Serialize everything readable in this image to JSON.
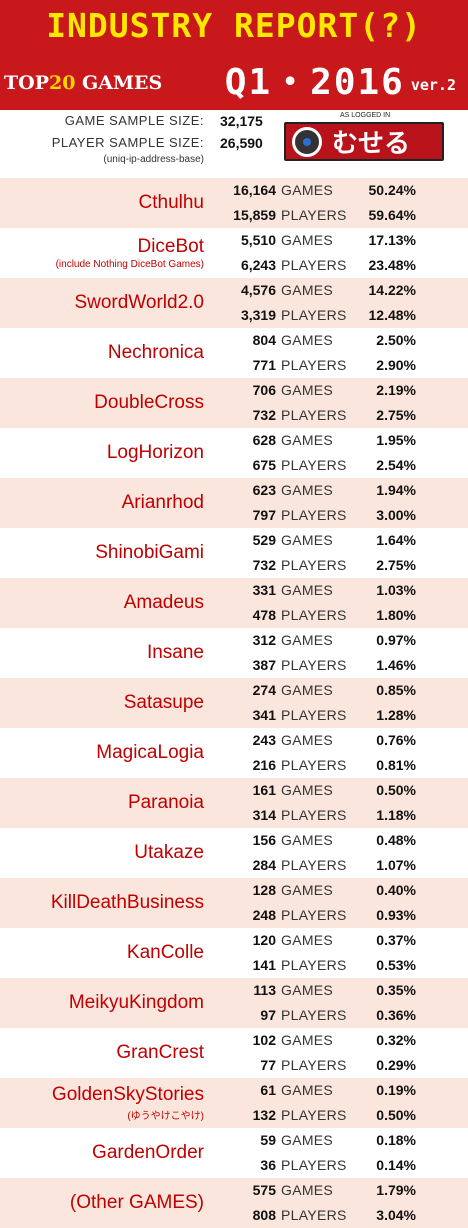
{
  "header": {
    "title": "INDUSTRY REPORT(?)",
    "badge_top": "TOP",
    "badge_num": "20",
    "badge_games": " GAMES",
    "quarter": "Q1・2016",
    "version": "ver.2"
  },
  "meta": {
    "game_sample_label": "GAME SAMPLE SIZE:",
    "game_sample_value": "32,175",
    "player_sample_label": "PLAYER SAMPLE SIZE:",
    "player_sample_value": "26,590",
    "note": "(uniq-ip-address-base)",
    "logged_caption": "AS LOGGED IN",
    "logo_text": "むせる"
  },
  "units": {
    "games": "GAMES",
    "players": "PLAYERS"
  },
  "games": [
    {
      "name": "Cthulhu",
      "sub": "",
      "games": "16,164",
      "games_pct": "50.24%",
      "players": "15,859",
      "players_pct": "59.64%"
    },
    {
      "name": "DiceBot",
      "sub": "(include Nothing DiceBot Games)",
      "games": "5,510",
      "games_pct": "17.13%",
      "players": "6,243",
      "players_pct": "23.48%"
    },
    {
      "name": "SwordWorld2.0",
      "sub": "",
      "games": "4,576",
      "games_pct": "14.22%",
      "players": "3,319",
      "players_pct": "12.48%"
    },
    {
      "name": "Nechronica",
      "sub": "",
      "games": "804",
      "games_pct": "2.50%",
      "players": "771",
      "players_pct": "2.90%"
    },
    {
      "name": "DoubleCross",
      "sub": "",
      "games": "706",
      "games_pct": "2.19%",
      "players": "732",
      "players_pct": "2.75%"
    },
    {
      "name": "LogHorizon",
      "sub": "",
      "games": "628",
      "games_pct": "1.95%",
      "players": "675",
      "players_pct": "2.54%"
    },
    {
      "name": "Arianrhod",
      "sub": "",
      "games": "623",
      "games_pct": "1.94%",
      "players": "797",
      "players_pct": "3.00%"
    },
    {
      "name": "ShinobiGami",
      "sub": "",
      "games": "529",
      "games_pct": "1.64%",
      "players": "732",
      "players_pct": "2.75%"
    },
    {
      "name": "Amadeus",
      "sub": "",
      "games": "331",
      "games_pct": "1.03%",
      "players": "478",
      "players_pct": "1.80%"
    },
    {
      "name": "Insane",
      "sub": "",
      "games": "312",
      "games_pct": "0.97%",
      "players": "387",
      "players_pct": "1.46%"
    },
    {
      "name": "Satasupe",
      "sub": "",
      "games": "274",
      "games_pct": "0.85%",
      "players": "341",
      "players_pct": "1.28%"
    },
    {
      "name": "MagicaLogia",
      "sub": "",
      "games": "243",
      "games_pct": "0.76%",
      "players": "216",
      "players_pct": "0.81%"
    },
    {
      "name": "Paranoia",
      "sub": "",
      "games": "161",
      "games_pct": "0.50%",
      "players": "314",
      "players_pct": "1.18%"
    },
    {
      "name": "Utakaze",
      "sub": "",
      "games": "156",
      "games_pct": "0.48%",
      "players": "284",
      "players_pct": "1.07%"
    },
    {
      "name": "KillDeathBusiness",
      "sub": "",
      "games": "128",
      "games_pct": "0.40%",
      "players": "248",
      "players_pct": "0.93%"
    },
    {
      "name": "KanColle",
      "sub": "",
      "games": "120",
      "games_pct": "0.37%",
      "players": "141",
      "players_pct": "0.53%"
    },
    {
      "name": "MeikyuKingdom",
      "sub": "",
      "games": "113",
      "games_pct": "0.35%",
      "players": "97",
      "players_pct": "0.36%"
    },
    {
      "name": "GranCrest",
      "sub": "",
      "games": "102",
      "games_pct": "0.32%",
      "players": "77",
      "players_pct": "0.29%"
    },
    {
      "name": "GoldenSkyStories",
      "sub": "(ゆうやけこやけ)",
      "games": "61",
      "games_pct": "0.19%",
      "players": "132",
      "players_pct": "0.50%"
    },
    {
      "name": "GardenOrder",
      "sub": "",
      "games": "59",
      "games_pct": "0.18%",
      "players": "36",
      "players_pct": "0.14%"
    },
    {
      "name": "(Other GAMES)",
      "sub": "",
      "games": "575",
      "games_pct": "1.79%",
      "players": "808",
      "players_pct": "3.04%"
    }
  ]
}
